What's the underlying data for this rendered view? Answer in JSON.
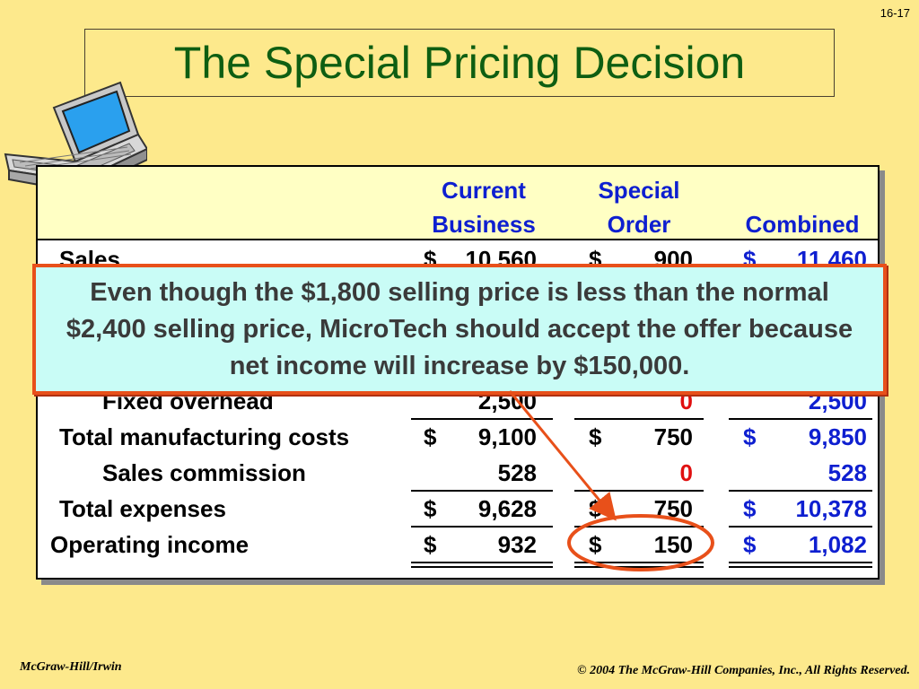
{
  "slide_number": "16-17",
  "title": "The Special Pricing Decision",
  "table": {
    "headers": {
      "current_line1": "Current",
      "current_line2": "Business",
      "special_line1": "Special",
      "special_line2": "Order",
      "combined": "Combined"
    },
    "rows": [
      {
        "label": "Sales",
        "current": "10,560",
        "special": "900",
        "combined": "11,460",
        "current_dollar": "$",
        "special_dollar": "$",
        "combined_dollar": "$"
      },
      {
        "label": "Fixed overhead",
        "current": "2,500",
        "special": "0",
        "combined": "2,500"
      },
      {
        "label": "Total manufacturing costs",
        "current": "9,100",
        "special": "750",
        "combined": "9,850",
        "current_dollar": "$",
        "special_dollar": "$",
        "combined_dollar": "$"
      },
      {
        "label": "Sales commission",
        "current": "528",
        "special": "0",
        "combined": "528"
      },
      {
        "label": "Total expenses",
        "current": "9,628",
        "special": "750",
        "combined": "10,378",
        "current_dollar": "$",
        "special_dollar": "$",
        "combined_dollar": "$"
      },
      {
        "label": "Operating income",
        "current": "932",
        "special": "150",
        "combined": "1,082",
        "current_dollar": "$",
        "special_dollar": "$",
        "combined_dollar": "$"
      }
    ]
  },
  "callout_text": "Even though the $1,800 selling price is less than the normal $2,400 selling price, MicroTech should accept the offer because net income will increase by $150,000.",
  "footer": {
    "publisher": "McGraw-Hill/Irwin",
    "copyright": "© 2004 The McGraw-Hill Companies, Inc., All Rights Reserved."
  },
  "colors": {
    "background": "#fde98c",
    "title": "#0e5e12",
    "header_text": "#0e1fd0",
    "special_zero": "#e01010",
    "combined_values": "#0e1fd0",
    "callout_border": "#e8501a",
    "callout_fill": "#c9fcf6"
  },
  "icons": [
    "laptop-icon"
  ]
}
